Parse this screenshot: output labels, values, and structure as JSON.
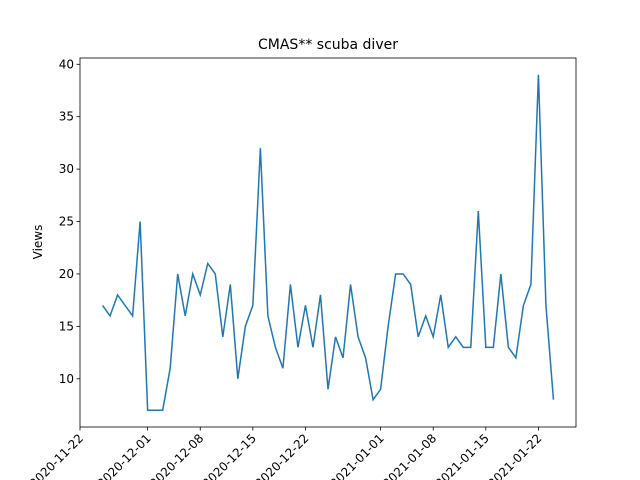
{
  "chart_data": {
    "type": "line",
    "title": "CMAS** scuba diver",
    "y_label": "Views",
    "x": [
      "2020-11-25",
      "2020-11-26",
      "2020-11-27",
      "2020-11-28",
      "2020-11-29",
      "2020-11-30",
      "2020-12-01",
      "2020-12-02",
      "2020-12-03",
      "2020-12-04",
      "2020-12-05",
      "2020-12-06",
      "2020-12-07",
      "2020-12-08",
      "2020-12-09",
      "2020-12-10",
      "2020-12-11",
      "2020-12-12",
      "2020-12-13",
      "2020-12-14",
      "2020-12-15",
      "2020-12-16",
      "2020-12-17",
      "2020-12-18",
      "2020-12-19",
      "2020-12-20",
      "2020-12-21",
      "2020-12-22",
      "2020-12-23",
      "2020-12-24",
      "2020-12-25",
      "2020-12-26",
      "2020-12-27",
      "2020-12-28",
      "2020-12-29",
      "2020-12-30",
      "2020-12-31",
      "2021-01-01",
      "2021-01-02",
      "2021-01-03",
      "2021-01-04",
      "2021-01-05",
      "2021-01-06",
      "2021-01-07",
      "2021-01-08",
      "2021-01-09",
      "2021-01-10",
      "2021-01-11",
      "2021-01-12",
      "2021-01-13",
      "2021-01-14",
      "2021-01-15",
      "2021-01-16",
      "2021-01-17",
      "2021-01-18",
      "2021-01-19",
      "2021-01-20",
      "2021-01-21",
      "2021-01-22",
      "2021-01-23",
      "2021-01-24"
    ],
    "series": [
      {
        "name": "Views",
        "color": "#1f77b4",
        "values": [
          17,
          16,
          18,
          17,
          16,
          25,
          7,
          7,
          7,
          11,
          20,
          16,
          20,
          18,
          21,
          20,
          14,
          19,
          10,
          15,
          17,
          32,
          16,
          13,
          11,
          19,
          13,
          17,
          13,
          18,
          9,
          14,
          12,
          19,
          14,
          12,
          8,
          9,
          15,
          20,
          20,
          19,
          14,
          16,
          14,
          18,
          13,
          14,
          13,
          13,
          26,
          13,
          13,
          20,
          13,
          12,
          17,
          19,
          39,
          17,
          8
        ]
      }
    ],
    "xlim": [
      "2020-11-22",
      "2021-01-27"
    ],
    "xticks": [
      "2020-11-22",
      "2020-12-01",
      "2020-12-08",
      "2020-12-15",
      "2020-12-22",
      "2021-01-01",
      "2021-01-08",
      "2021-01-15",
      "2021-01-22"
    ],
    "ylim": [
      5.4,
      40.6
    ],
    "yticks": [
      10,
      15,
      20,
      25,
      30,
      35,
      40
    ]
  }
}
